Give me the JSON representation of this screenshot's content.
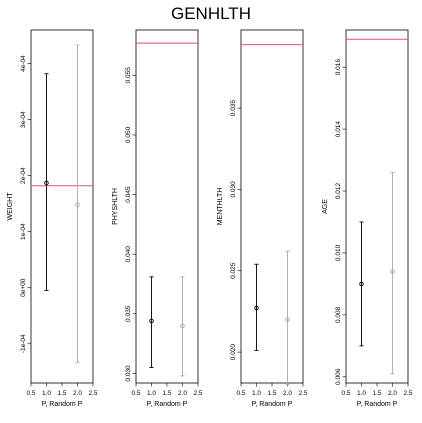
{
  "title": "GENHLTH",
  "chart_data": [
    {
      "type": "scatter",
      "xlabel": "P, Random P",
      "ylabel": "WEIGHT",
      "xlim": [
        0.5,
        2.5
      ],
      "ylim": [
        -0.00017,
        0.00046
      ],
      "xticks": [
        0.5,
        1.0,
        1.5,
        2.0,
        2.5
      ],
      "xtick_labels": [
        "0.5",
        "1.0",
        "1.5",
        "2.0",
        "2.5"
      ],
      "yticks": [
        -0.0001,
        0.0,
        0.0001,
        0.0002,
        0.0003,
        0.0004
      ],
      "ytick_labels": [
        "-1e-04",
        "0e+00",
        "1e-04",
        "2e-04",
        "3e-04",
        "4e-04"
      ],
      "reference_line": 0.000182,
      "points": [
        {
          "x": 1,
          "y": 0.000187,
          "low": -5e-06,
          "high": 0.000382,
          "color": "#000000"
        },
        {
          "x": 2,
          "y": 0.000148,
          "low": -0.000133,
          "high": 0.000433,
          "color": "#aaaaaa"
        }
      ]
    },
    {
      "type": "scatter",
      "xlabel": "P, Random P",
      "ylabel": "PHYSHLTH",
      "xlim": [
        0.5,
        2.5
      ],
      "ylim": [
        0.0292,
        0.0588
      ],
      "xticks": [
        0.5,
        1.0,
        1.5,
        2.0,
        2.5
      ],
      "xtick_labels": [
        "0.5",
        "1.0",
        "1.5",
        "2.0",
        "2.5"
      ],
      "yticks": [
        0.03,
        0.035,
        0.04,
        0.045,
        0.05,
        0.055
      ],
      "ytick_labels": [
        "0.030",
        "0.035",
        "0.040",
        "0.045",
        "0.050",
        "0.055"
      ],
      "reference_line": 0.0577,
      "points": [
        {
          "x": 1,
          "y": 0.0344,
          "low": 0.0305,
          "high": 0.0381,
          "color": "#000000"
        },
        {
          "x": 2,
          "y": 0.034,
          "low": 0.0298,
          "high": 0.0381,
          "color": "#aaaaaa"
        }
      ]
    },
    {
      "type": "scatter",
      "xlabel": "P, Random P",
      "ylabel": "MENTHLTH",
      "xlim": [
        0.5,
        2.5
      ],
      "ylim": [
        0.0181,
        0.0398
      ],
      "xticks": [
        0.5,
        1.0,
        1.5,
        2.0,
        2.5
      ],
      "xtick_labels": [
        "0.5",
        "1.0",
        "1.5",
        "2.0",
        "2.5"
      ],
      "yticks": [
        0.02,
        0.025,
        0.03,
        0.035
      ],
      "ytick_labels": [
        "0.020",
        "0.025",
        "0.030",
        "0.035"
      ],
      "reference_line": 0.0389,
      "points": [
        {
          "x": 1,
          "y": 0.0227,
          "low": 0.0201,
          "high": 0.0254,
          "color": "#000000"
        },
        {
          "x": 2,
          "y": 0.022,
          "low": 0.018,
          "high": 0.0262,
          "color": "#aaaaaa"
        }
      ]
    },
    {
      "type": "scatter",
      "xlabel": "P, Random P",
      "ylabel": "AGE",
      "xlim": [
        0.5,
        2.5
      ],
      "ylim": [
        0.0058,
        0.0172
      ],
      "xticks": [
        0.5,
        1.0,
        1.5,
        2.0,
        2.5
      ],
      "xtick_labels": [
        "0.5",
        "1.0",
        "1.5",
        "2.0",
        "2.5"
      ],
      "yticks": [
        0.006,
        0.008,
        0.01,
        0.012,
        0.014,
        0.016
      ],
      "ytick_labels": [
        "0.006",
        "0.008",
        "0.010",
        "0.012",
        "0.014",
        "0.016"
      ],
      "reference_line": 0.0169,
      "points": [
        {
          "x": 1,
          "y": 0.009,
          "low": 0.007,
          "high": 0.011,
          "color": "#000000"
        },
        {
          "x": 2,
          "y": 0.0094,
          "low": 0.0061,
          "high": 0.0126,
          "color": "#aaaaaa"
        }
      ]
    }
  ],
  "colors": {
    "reference_line": "#e0506e",
    "frame": "#000000"
  }
}
